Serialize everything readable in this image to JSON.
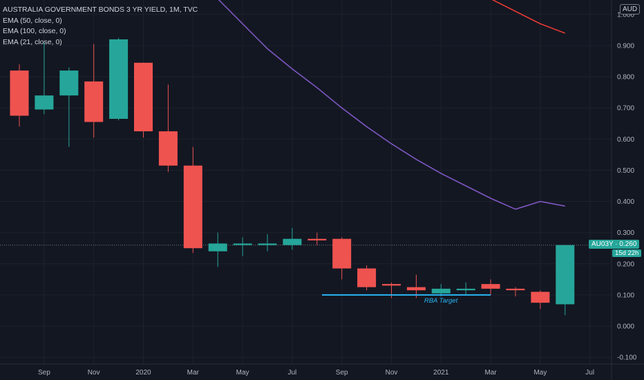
{
  "legend": {
    "title": "AUSTRALIA GOVERNMENT BONDS 3 YR YIELD, 1M, TVC",
    "ema50": "EMA (50, close, 0)",
    "ema100": "EMA (100, close, 0)",
    "ema21": "EMA (21, close, 0)"
  },
  "currency": "AUD",
  "price_tag": "AU03Y · 0.260",
  "time_tag": "15d 22h",
  "colors": {
    "background": "#131722",
    "grid": "#1e222d",
    "up": "#26a69a",
    "down": "#ef5350",
    "ema_purple": "#7e57c2",
    "ema_red": "#e53935",
    "rba_line": "#29b6f6",
    "axis_text": "#b2b5be"
  },
  "chart_data": {
    "type": "candlestick",
    "ylim": [
      -0.12,
      1.05
    ],
    "y_ticks": [
      "1.000",
      "0.900",
      "0.800",
      "0.700",
      "0.600",
      "0.500",
      "0.400",
      "0.300",
      "0.200",
      "0.100",
      "0.000",
      "-0.100"
    ],
    "x_ticks": [
      {
        "index": 1,
        "label": "Sep"
      },
      {
        "index": 3,
        "label": "Nov"
      },
      {
        "index": 5,
        "label": "2020"
      },
      {
        "index": 7,
        "label": "Mar"
      },
      {
        "index": 9,
        "label": "May"
      },
      {
        "index": 11,
        "label": "Jul"
      },
      {
        "index": 13,
        "label": "Sep"
      },
      {
        "index": 15,
        "label": "Nov"
      },
      {
        "index": 17,
        "label": "2021"
      },
      {
        "index": 19,
        "label": "Mar"
      },
      {
        "index": 21,
        "label": "May"
      },
      {
        "index": 23,
        "label": "Jul"
      }
    ],
    "candles": [
      {
        "month": "2019-08",
        "open": 0.82,
        "high": 0.84,
        "low": 0.64,
        "close": 0.675
      },
      {
        "month": "2019-09",
        "open": 0.695,
        "high": 0.91,
        "low": 0.68,
        "close": 0.74
      },
      {
        "month": "2019-10",
        "open": 0.74,
        "high": 0.83,
        "low": 0.575,
        "close": 0.82
      },
      {
        "month": "2019-11",
        "open": 0.785,
        "high": 0.905,
        "low": 0.605,
        "close": 0.655
      },
      {
        "month": "2019-12",
        "open": 0.665,
        "high": 0.925,
        "low": 0.66,
        "close": 0.92
      },
      {
        "month": "2020-01",
        "open": 0.845,
        "high": 0.845,
        "low": 0.605,
        "close": 0.625
      },
      {
        "month": "2020-02",
        "open": 0.625,
        "high": 0.775,
        "low": 0.495,
        "close": 0.515
      },
      {
        "month": "2020-03",
        "open": 0.515,
        "high": 0.575,
        "low": 0.235,
        "close": 0.25
      },
      {
        "month": "2020-04",
        "open": 0.24,
        "high": 0.3,
        "low": 0.19,
        "close": 0.265
      },
      {
        "month": "2020-05",
        "open": 0.26,
        "high": 0.285,
        "low": 0.225,
        "close": 0.265
      },
      {
        "month": "2020-06",
        "open": 0.26,
        "high": 0.295,
        "low": 0.24,
        "close": 0.265
      },
      {
        "month": "2020-07",
        "open": 0.26,
        "high": 0.315,
        "low": 0.245,
        "close": 0.28
      },
      {
        "month": "2020-08",
        "open": 0.28,
        "high": 0.3,
        "low": 0.26,
        "close": 0.275
      },
      {
        "month": "2020-09",
        "open": 0.28,
        "high": 0.285,
        "low": 0.15,
        "close": 0.185
      },
      {
        "month": "2020-10",
        "open": 0.185,
        "high": 0.195,
        "low": 0.115,
        "close": 0.125
      },
      {
        "month": "2020-11",
        "open": 0.135,
        "high": 0.14,
        "low": 0.09,
        "close": 0.13
      },
      {
        "month": "2020-12",
        "open": 0.125,
        "high": 0.165,
        "low": 0.09,
        "close": 0.115
      },
      {
        "month": "2021-01",
        "open": 0.105,
        "high": 0.135,
        "low": 0.095,
        "close": 0.12
      },
      {
        "month": "2021-02",
        "open": 0.115,
        "high": 0.14,
        "low": 0.1,
        "close": 0.12
      },
      {
        "month": "2021-03",
        "open": 0.135,
        "high": 0.15,
        "low": 0.1,
        "close": 0.12
      },
      {
        "month": "2021-04",
        "open": 0.12,
        "high": 0.125,
        "low": 0.095,
        "close": 0.115
      },
      {
        "month": "2021-05",
        "open": 0.11,
        "high": 0.115,
        "low": 0.055,
        "close": 0.075
      },
      {
        "month": "2021-06",
        "open": 0.07,
        "high": 0.26,
        "low": 0.035,
        "close": 0.26
      }
    ],
    "ema_purple": [
      {
        "index": 8,
        "value": 1.05
      },
      {
        "index": 9,
        "value": 0.97
      },
      {
        "index": 10,
        "value": 0.89
      },
      {
        "index": 11,
        "value": 0.825
      },
      {
        "index": 12,
        "value": 0.765
      },
      {
        "index": 13,
        "value": 0.7
      },
      {
        "index": 14,
        "value": 0.64
      },
      {
        "index": 15,
        "value": 0.585
      },
      {
        "index": 16,
        "value": 0.535
      },
      {
        "index": 17,
        "value": 0.49
      },
      {
        "index": 18,
        "value": 0.45
      },
      {
        "index": 19,
        "value": 0.41
      },
      {
        "index": 20,
        "value": 0.375
      },
      {
        "index": 21,
        "value": 0.4
      },
      {
        "index": 22,
        "value": 0.385
      }
    ],
    "ema_red": [
      {
        "index": 19,
        "value": 1.05
      },
      {
        "index": 20,
        "value": 1.01
      },
      {
        "index": 21,
        "value": 0.97
      },
      {
        "index": 22,
        "value": 0.94
      }
    ],
    "current_price": 0.26,
    "rba_target": {
      "label": "RBA Target",
      "value": 0.1,
      "from_index": 12.2,
      "to_index": 19
    }
  }
}
